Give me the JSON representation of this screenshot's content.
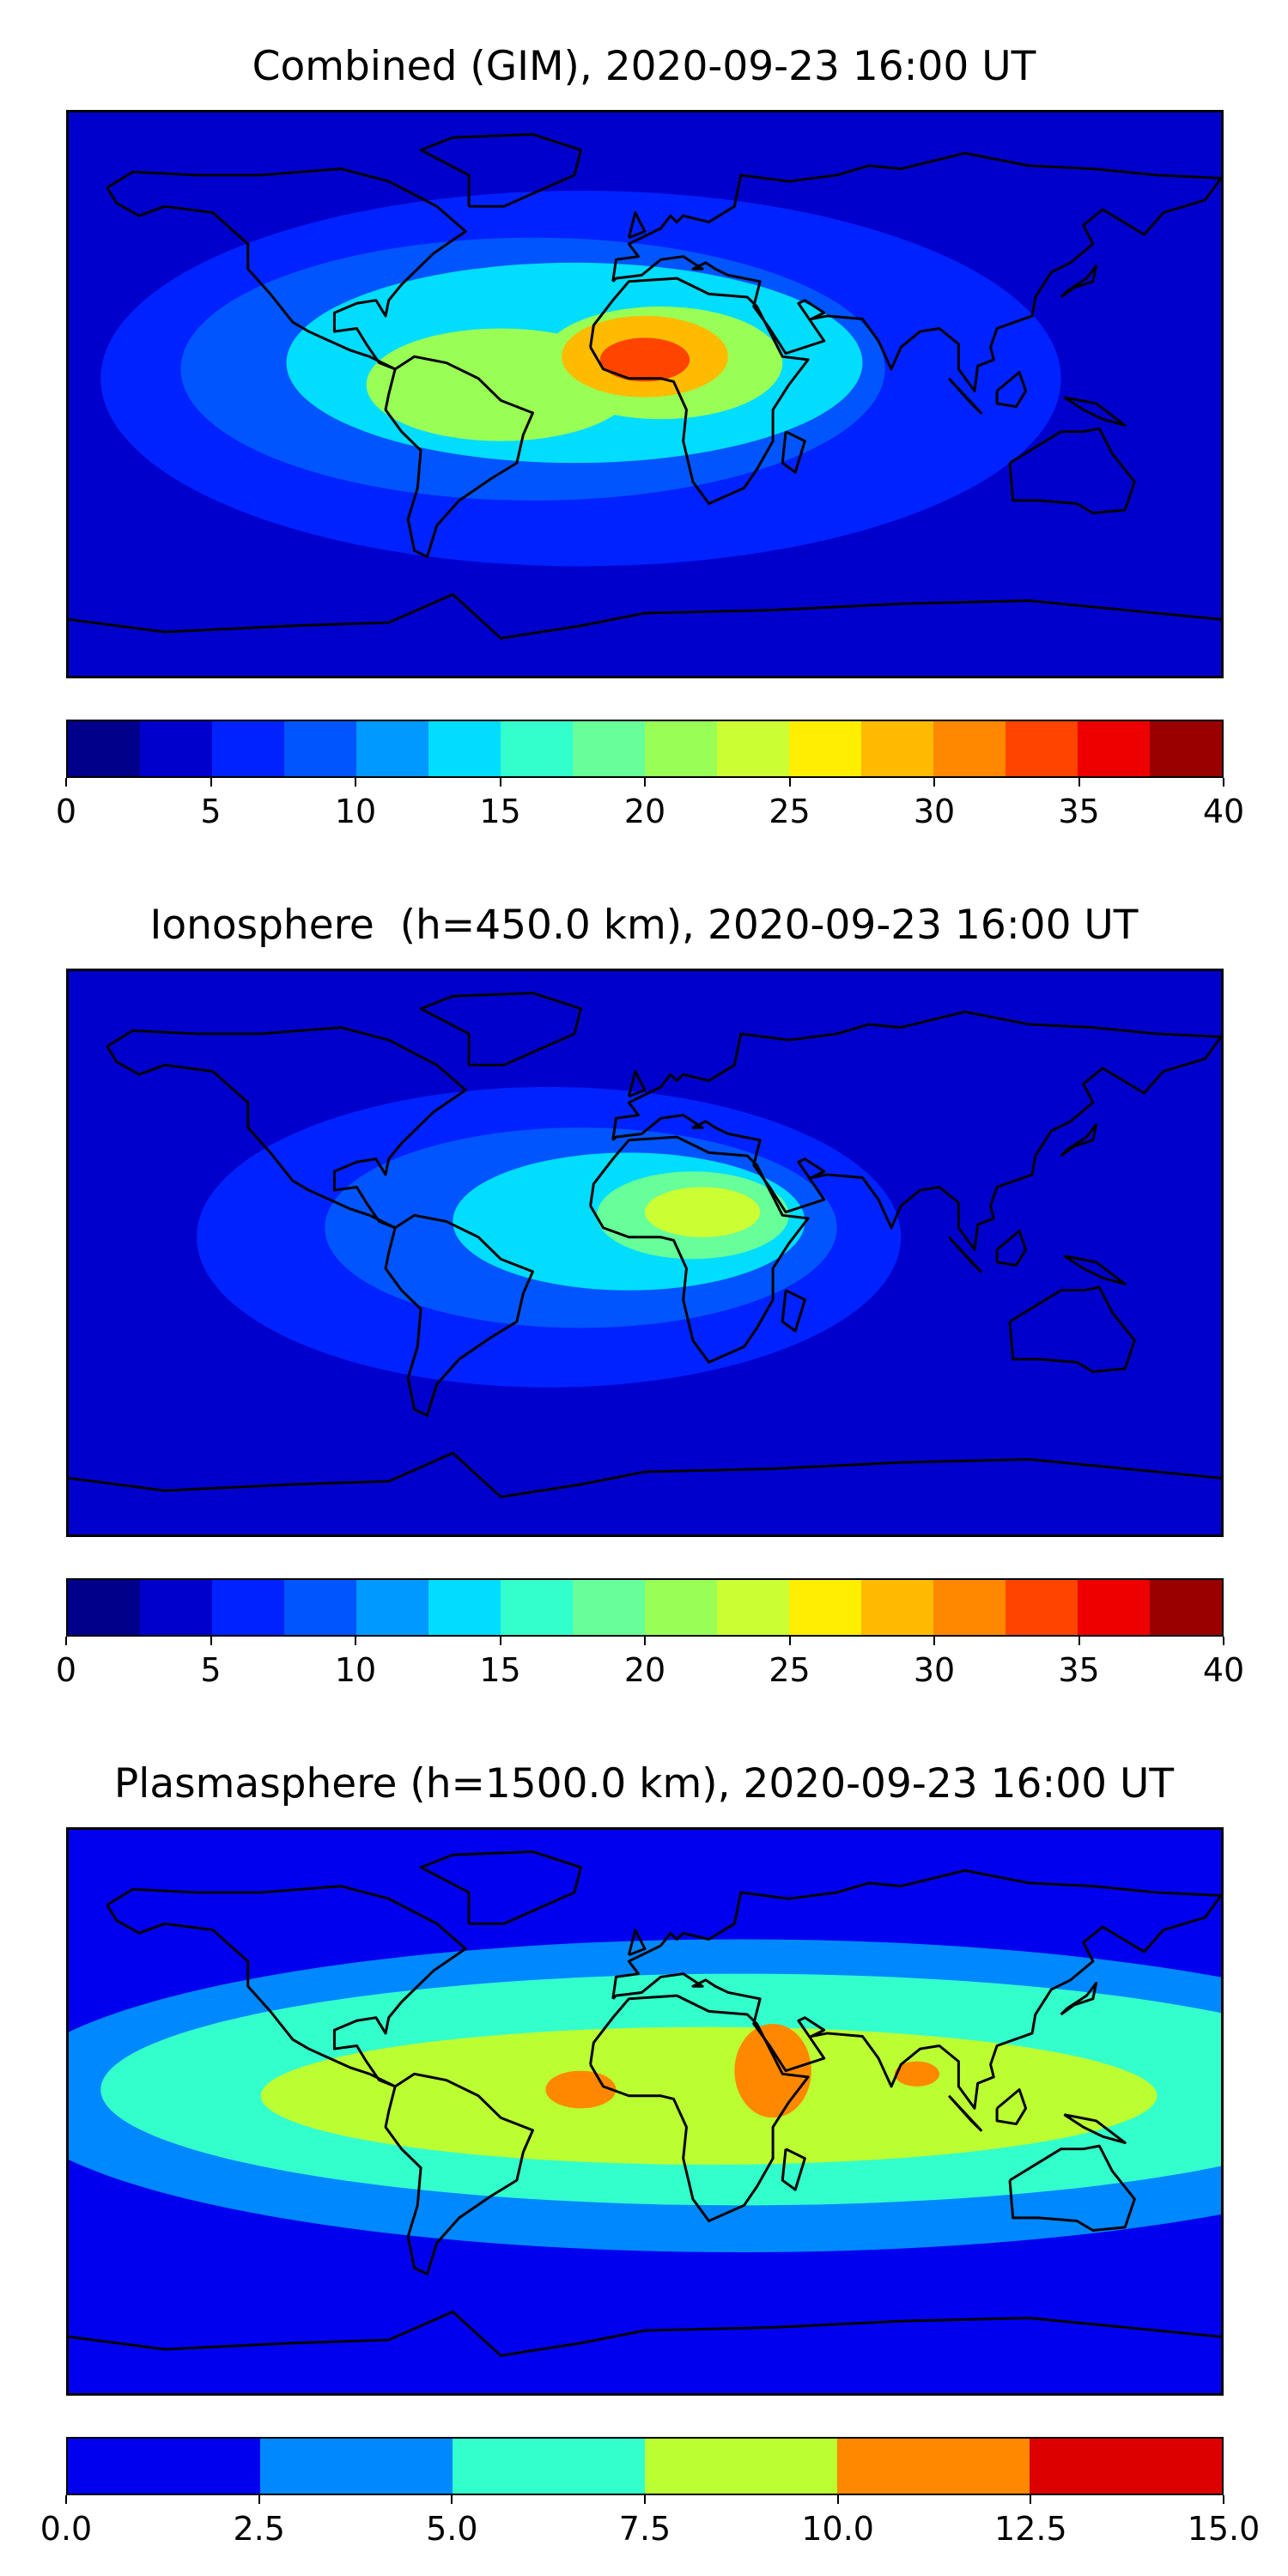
{
  "chart_data": [
    {
      "type": "heatmap",
      "title": "Combined (GIM), 2020-09-23 16:00 UT",
      "colorbar": {
        "levels": [
          0,
          2.5,
          5,
          7.5,
          10,
          12.5,
          15,
          17.5,
          20,
          22.5,
          25,
          27.5,
          30,
          32.5,
          35,
          37.5,
          40
        ],
        "colors": [
          "#00008b",
          "#0000cd",
          "#0022ff",
          "#0055ff",
          "#0099ff",
          "#00ddff",
          "#33ffcc",
          "#66ff99",
          "#99ff55",
          "#ccff33",
          "#ffee00",
          "#ffbb00",
          "#ff8800",
          "#ff4400",
          "#ee0000",
          "#990000"
        ],
        "tick_values": [
          0,
          5,
          10,
          15,
          20,
          25,
          30,
          35,
          40
        ],
        "tick_labels": [
          "0",
          "5",
          "10",
          "15",
          "20",
          "25",
          "30",
          "35",
          "40"
        ]
      },
      "background_level": 1,
      "blobs": [
        {
          "lon": -20,
          "lat": 5,
          "rlon": 150,
          "rlat": 60,
          "level": 2
        },
        {
          "lon": -35,
          "lat": 8,
          "rlon": 110,
          "rlat": 42,
          "level": 3
        },
        {
          "lon": -22,
          "lat": 10,
          "rlon": 90,
          "rlat": 32,
          "level": 5
        },
        {
          "lon": -45,
          "lat": 3,
          "rlon": 42,
          "rlat": 18,
          "level": 8
        },
        {
          "lon": 5,
          "lat": 10,
          "rlon": 38,
          "rlat": 18,
          "level": 8
        },
        {
          "lon": 0,
          "lat": 12,
          "rlon": 26,
          "rlat": 13,
          "level": 11
        },
        {
          "lon": 0,
          "lat": 11,
          "rlon": 14,
          "rlat": 7,
          "level": 13
        }
      ]
    },
    {
      "type": "heatmap",
      "title": "Ionosphere  (h=450.0 km), 2020-09-23 16:00 UT",
      "colorbar": {
        "levels": [
          0,
          2.5,
          5,
          7.5,
          10,
          12.5,
          15,
          17.5,
          20,
          22.5,
          25,
          27.5,
          30,
          32.5,
          35,
          37.5,
          40
        ],
        "colors": [
          "#00008b",
          "#0000cd",
          "#0022ff",
          "#0055ff",
          "#0099ff",
          "#00ddff",
          "#33ffcc",
          "#66ff99",
          "#99ff55",
          "#ccff33",
          "#ffee00",
          "#ffbb00",
          "#ff8800",
          "#ff4400",
          "#ee0000",
          "#990000"
        ],
        "tick_values": [
          0,
          5,
          10,
          15,
          20,
          25,
          30,
          35,
          40
        ],
        "tick_labels": [
          "0",
          "5",
          "10",
          "15",
          "20",
          "25",
          "30",
          "35",
          "40"
        ]
      },
      "background_level": 1,
      "blobs": [
        {
          "lon": -30,
          "lat": 5,
          "rlon": 110,
          "rlat": 48,
          "level": 2
        },
        {
          "lon": -20,
          "lat": 8,
          "rlon": 80,
          "rlat": 32,
          "level": 3
        },
        {
          "lon": -5,
          "lat": 10,
          "rlon": 55,
          "rlat": 22,
          "level": 5
        },
        {
          "lon": 15,
          "lat": 12,
          "rlon": 30,
          "rlat": 14,
          "level": 7
        },
        {
          "lon": 18,
          "lat": 13,
          "rlon": 18,
          "rlat": 8,
          "level": 9
        }
      ]
    },
    {
      "type": "heatmap",
      "title": "Plasmasphere (h=1500.0 km), 2020-09-23 16:00 UT",
      "colorbar": {
        "levels": [
          0.0,
          2.5,
          5.0,
          7.5,
          10.0,
          12.5,
          15.0
        ],
        "colors": [
          "#0000ee",
          "#0088ff",
          "#33ffcc",
          "#bbff33",
          "#ff8800",
          "#dd0000"
        ],
        "tick_values": [
          0.0,
          2.5,
          5.0,
          7.5,
          10.0,
          12.5,
          15.0
        ],
        "tick_labels": [
          "0.0",
          "2.5",
          "5.0",
          "7.5",
          "10.0",
          "12.5",
          "15.0"
        ]
      },
      "background_level": 0,
      "blobs": [
        {
          "lon": 30,
          "lat": 5,
          "rlon": 230,
          "rlat": 50,
          "level": 1
        },
        {
          "lon": 30,
          "lat": 7,
          "rlon": 200,
          "rlat": 37,
          "level": 2
        },
        {
          "lon": 20,
          "lat": 5,
          "rlon": 140,
          "rlat": 22,
          "level": 3
        },
        {
          "lon": 40,
          "lat": 13,
          "rlon": 12,
          "rlat": 15,
          "level": 4
        },
        {
          "lon": -20,
          "lat": 7,
          "rlon": 11,
          "rlat": 6,
          "level": 4
        },
        {
          "lon": 85,
          "lat": 12,
          "rlon": 7,
          "rlat": 4,
          "level": 4
        }
      ]
    }
  ]
}
